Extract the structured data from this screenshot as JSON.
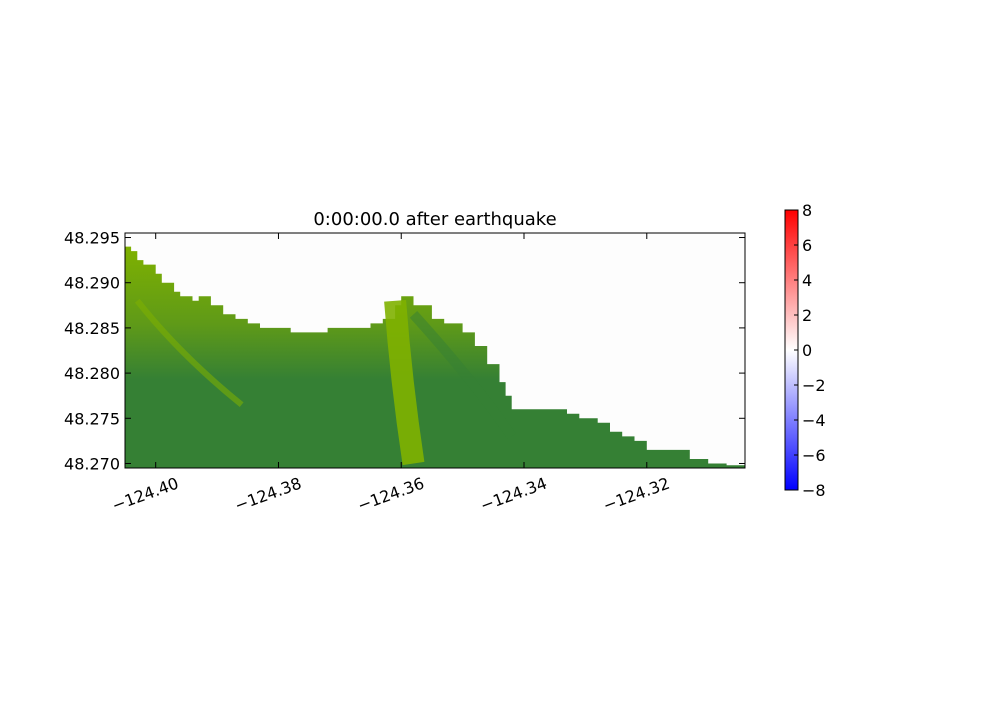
{
  "chart_data": {
    "type": "heatmap",
    "title": "0:00:00.0 after earthquake",
    "xlabel": "",
    "ylabel": "",
    "xlim": [
      -124.405,
      -124.304
    ],
    "ylim": [
      48.2695,
      48.2955
    ],
    "x_ticks": [
      {
        "value": -124.4,
        "label": "−124.40"
      },
      {
        "value": -124.38,
        "label": "−124.38"
      },
      {
        "value": -124.36,
        "label": "−124.36"
      },
      {
        "value": -124.34,
        "label": "−124.34"
      },
      {
        "value": -124.32,
        "label": "−124.32"
      }
    ],
    "y_ticks": [
      {
        "value": 48.295,
        "label": "48.295"
      },
      {
        "value": 48.29,
        "label": "48.290"
      },
      {
        "value": 48.285,
        "label": "48.285"
      },
      {
        "value": 48.28,
        "label": "48.280"
      },
      {
        "value": 48.275,
        "label": "48.275"
      },
      {
        "value": 48.27,
        "label": "48.270"
      }
    ],
    "land_colors": {
      "low": "#7fb100",
      "high": "#358034"
    },
    "land_boundary": [
      [
        -124.405,
        48.294
      ],
      [
        -124.404,
        48.2935
      ],
      [
        -124.403,
        48.2925
      ],
      [
        -124.402,
        48.292
      ],
      [
        -124.4,
        48.291
      ],
      [
        -124.399,
        48.29
      ],
      [
        -124.397,
        48.289
      ],
      [
        -124.396,
        48.2885
      ],
      [
        -124.394,
        48.288
      ],
      [
        -124.393,
        48.2885
      ],
      [
        -124.391,
        48.2875
      ],
      [
        -124.389,
        48.2865
      ],
      [
        -124.387,
        48.286
      ],
      [
        -124.385,
        48.2855
      ],
      [
        -124.383,
        48.285
      ],
      [
        -124.378,
        48.2845
      ],
      [
        -124.375,
        48.2845
      ],
      [
        -124.372,
        48.285
      ],
      [
        -124.368,
        48.285
      ],
      [
        -124.365,
        48.2855
      ],
      [
        -124.363,
        48.286
      ],
      [
        -124.361,
        48.2875
      ],
      [
        -124.36,
        48.2885
      ],
      [
        -124.358,
        48.2875
      ],
      [
        -124.355,
        48.286
      ],
      [
        -124.353,
        48.2855
      ],
      [
        -124.35,
        48.2845
      ],
      [
        -124.348,
        48.283
      ],
      [
        -124.346,
        48.281
      ],
      [
        -124.344,
        48.279
      ],
      [
        -124.343,
        48.2775
      ],
      [
        -124.342,
        48.276
      ],
      [
        -124.338,
        48.276
      ],
      [
        -124.333,
        48.2755
      ],
      [
        -124.331,
        48.275
      ],
      [
        -124.328,
        48.2745
      ],
      [
        -124.326,
        48.2735
      ],
      [
        -124.324,
        48.273
      ],
      [
        -124.322,
        48.2725
      ],
      [
        -124.32,
        48.2715
      ],
      [
        -124.317,
        48.2715
      ],
      [
        -124.313,
        48.2705
      ],
      [
        -124.31,
        48.27
      ],
      [
        -124.307,
        48.2698
      ],
      [
        -124.304,
        48.2697
      ]
    ],
    "colorbar": {
      "min": -8,
      "max": 8,
      "ticks": [
        {
          "value": 8,
          "label": "8"
        },
        {
          "value": 6,
          "label": "6"
        },
        {
          "value": 4,
          "label": "4"
        },
        {
          "value": 2,
          "label": "2"
        },
        {
          "value": 0,
          "label": "0"
        },
        {
          "value": -2,
          "label": "−2"
        },
        {
          "value": -4,
          "label": "−4"
        },
        {
          "value": -6,
          "label": "−6"
        },
        {
          "value": -8,
          "label": "−8"
        }
      ],
      "colors": [
        "#0000ff",
        "#ffffff",
        "#ff0000"
      ]
    },
    "grid": false
  }
}
